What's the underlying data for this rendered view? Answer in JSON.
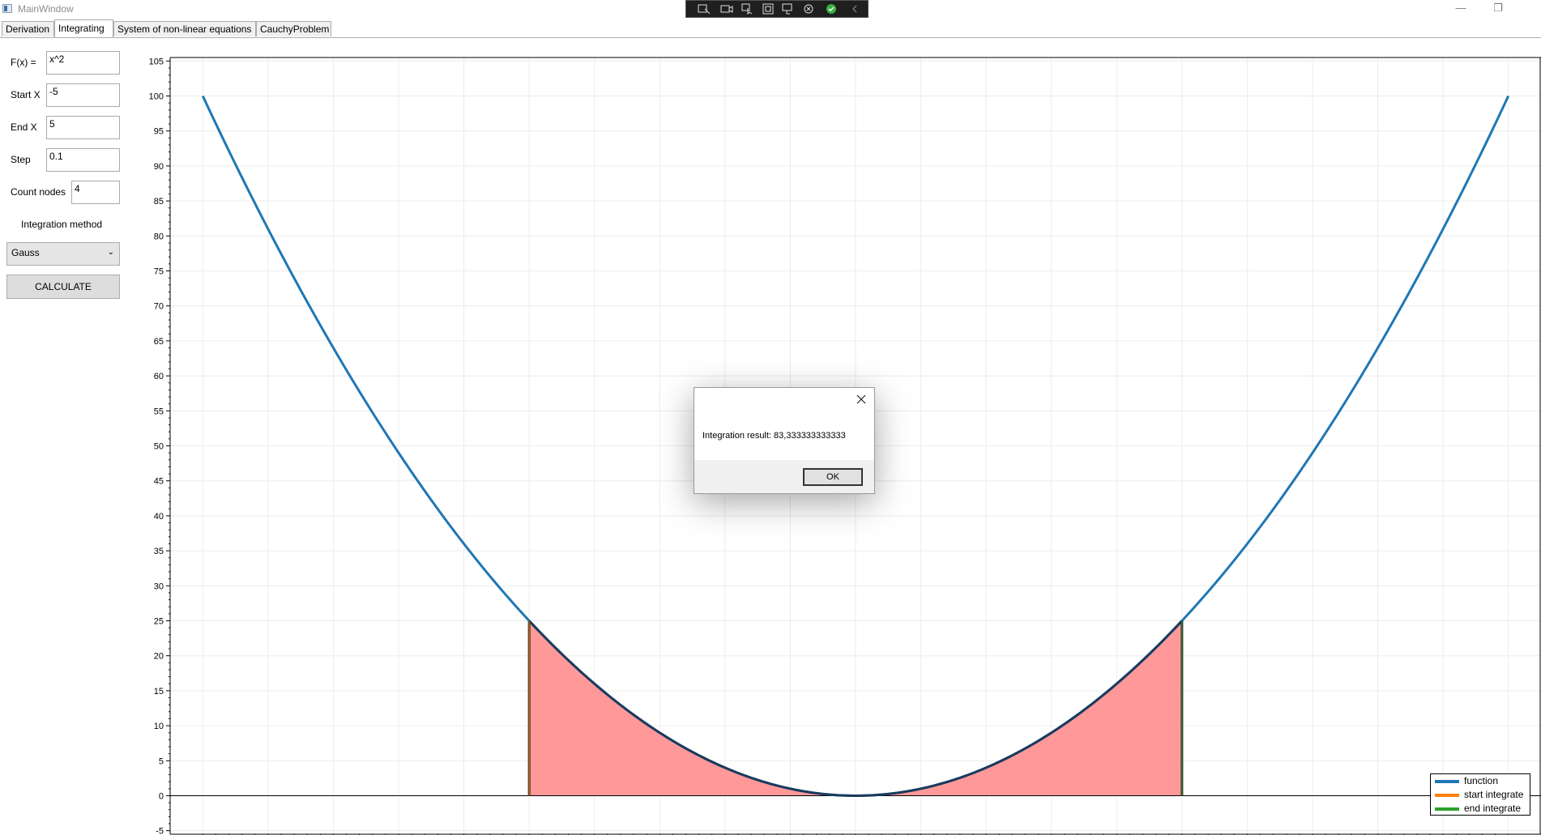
{
  "window": {
    "title": "MainWindow",
    "minimize_glyph": "—",
    "restore_glyph": "❐"
  },
  "tabs": [
    {
      "label": "Derivation"
    },
    {
      "label": "Integrating"
    },
    {
      "label": "System of non-linear equations"
    },
    {
      "label": "CauchyProblem"
    }
  ],
  "form": {
    "fx_label": "F(x) =",
    "fx_value": "x^2",
    "start_label": "Start X",
    "start_value": "-5",
    "end_label": "End X",
    "end_value": "5",
    "step_label": "Step",
    "step_value": "0.1",
    "nodes_label": "Count nodes",
    "nodes_value": "4",
    "method_label": "Integration method",
    "method_value": "Gauss",
    "calculate_label": "CALCULATE"
  },
  "chart_data": {
    "type": "line",
    "series": [
      {
        "name": "function",
        "color": "#1f77b4",
        "expression": "x^2",
        "x_range": [
          -10,
          10
        ]
      },
      {
        "name": "start integrate",
        "color": "#ff7f0e",
        "x": [
          -5,
          -5
        ],
        "y": [
          0,
          25
        ]
      },
      {
        "name": "end integrate",
        "color": "#2ca02c",
        "x": [
          5,
          5
        ],
        "y": [
          0,
          25
        ]
      }
    ],
    "fill": {
      "x_range": [
        -5,
        5
      ],
      "color": "#ff9999"
    },
    "xlim": [
      -10.5,
      10.5
    ],
    "ylim": [
      -5.5,
      105.5
    ],
    "x_ticks": [
      -10,
      -9,
      -8,
      -7,
      -6,
      -5,
      -4,
      -3,
      -2,
      -1,
      0,
      1,
      2,
      3,
      4,
      5,
      6,
      7,
      8,
      9,
      10
    ],
    "y_ticks": [
      -5,
      0,
      5,
      10,
      15,
      20,
      25,
      30,
      35,
      40,
      45,
      50,
      55,
      60,
      65,
      70,
      75,
      80,
      85,
      90,
      95,
      100,
      105
    ],
    "grid": true,
    "legend_position": "bottom-right"
  },
  "dialog": {
    "message": "Integration result: 83,333333333333",
    "ok_label": "OK"
  }
}
